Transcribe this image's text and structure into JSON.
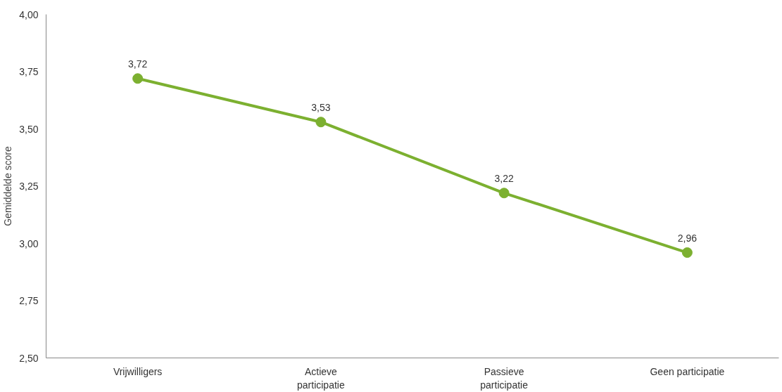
{
  "chart_data": {
    "type": "line",
    "ylabel": "Gemiddelde score",
    "categories": [
      "Vrijwilligers",
      "Actieve participatie",
      "Passieve participatie",
      "Geen participatie"
    ],
    "series": [
      {
        "color": "#7cb030",
        "values": [
          3.72,
          3.53,
          3.22,
          2.96
        ],
        "value_labels": [
          "3,72",
          "3,53",
          "3,22",
          "2,96"
        ]
      }
    ],
    "ylim": [
      2.5,
      4.0
    ],
    "yticks": [
      {
        "value": 2.5,
        "label": "2,50"
      },
      {
        "value": 2.75,
        "label": "2,75"
      },
      {
        "value": 3.0,
        "label": "3,00"
      },
      {
        "value": 3.25,
        "label": "3,25"
      },
      {
        "value": 3.5,
        "label": "3,50"
      },
      {
        "value": 3.75,
        "label": "3,75"
      },
      {
        "value": 4.0,
        "label": "4,00"
      }
    ],
    "grid": false,
    "marker": "circle",
    "line_style": "solid"
  }
}
